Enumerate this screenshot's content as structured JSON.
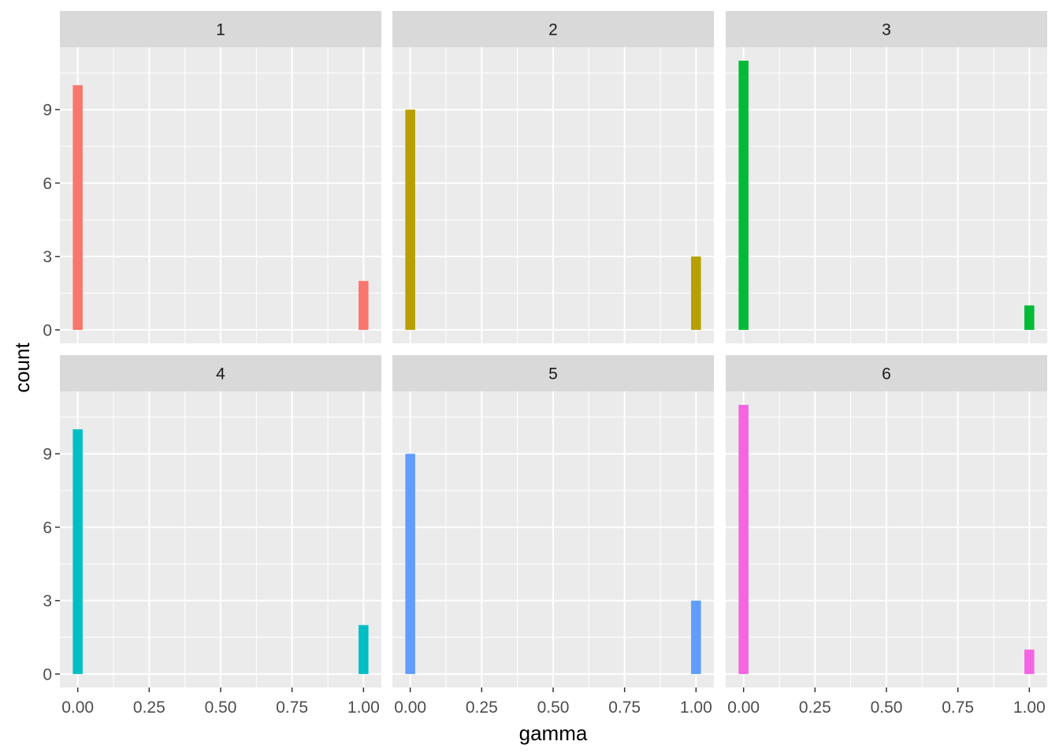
{
  "chart_data": {
    "type": "bar",
    "xlabel": "gamma",
    "ylabel": "count",
    "xlim": [
      -0.0625,
      1.0625
    ],
    "ylim": [
      -0.55,
      11.55
    ],
    "x_ticks": [
      0.0,
      0.25,
      0.5,
      0.75,
      1.0
    ],
    "x_tick_labels": [
      "0.00",
      "0.25",
      "0.50",
      "0.75",
      "1.00"
    ],
    "y_ticks": [
      0,
      3,
      6,
      9
    ],
    "y_tick_labels": [
      "0",
      "3",
      "6",
      "9"
    ],
    "bin_width": 0.0345,
    "grid": true,
    "layout": "facet-wrap 2x3",
    "panels": [
      {
        "label": "1",
        "color": "#F8766D",
        "bars": [
          {
            "x": 0.0,
            "count": 10
          },
          {
            "x": 1.0,
            "count": 2
          }
        ]
      },
      {
        "label": "2",
        "color": "#B79F00",
        "bars": [
          {
            "x": 0.0,
            "count": 9
          },
          {
            "x": 1.0,
            "count": 3
          }
        ]
      },
      {
        "label": "3",
        "color": "#00BA38",
        "bars": [
          {
            "x": 0.0,
            "count": 11
          },
          {
            "x": 1.0,
            "count": 1
          }
        ]
      },
      {
        "label": "4",
        "color": "#00BFC4",
        "bars": [
          {
            "x": 0.0,
            "count": 10
          },
          {
            "x": 1.0,
            "count": 2
          }
        ]
      },
      {
        "label": "5",
        "color": "#619CFF",
        "bars": [
          {
            "x": 0.0,
            "count": 9
          },
          {
            "x": 1.0,
            "count": 3
          }
        ]
      },
      {
        "label": "6",
        "color": "#F564E3",
        "bars": [
          {
            "x": 0.0,
            "count": 11
          },
          {
            "x": 1.0,
            "count": 1
          }
        ]
      }
    ]
  }
}
